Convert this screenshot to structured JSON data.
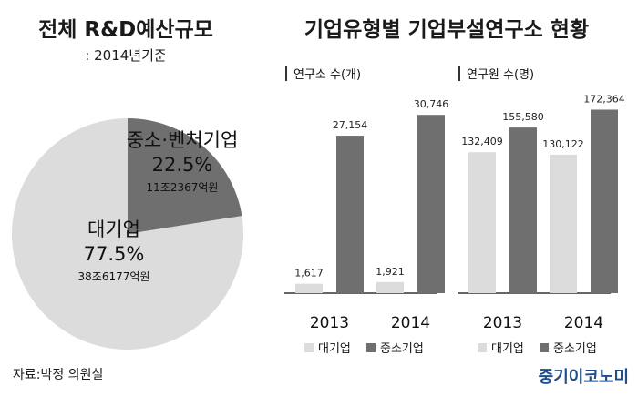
{
  "left_panel": {
    "title": "전체 R&D예산규모",
    "subtitle": ": 2014년기준"
  },
  "right_panel": {
    "title": "기업유형별 기업부설연구소 현황"
  },
  "source": "자료:박정 의원실",
  "brand": "중기이코노미",
  "colors": {
    "large_company": "#dcdcdc",
    "sme": "#6f6f6f",
    "brand": "#1f4e8c"
  },
  "chart_data": [
    {
      "type": "pie",
      "title": "전체 R&D예산규모",
      "subtitle": ": 2014년기준",
      "slices": [
        {
          "name": "중소·벤처기업",
          "percent": 22.5,
          "percent_label": "22.5%",
          "amount_label": "11조2367억원",
          "color": "#6f6f6f"
        },
        {
          "name": "대기업",
          "percent": 77.5,
          "percent_label": "77.5%",
          "amount_label": "38조6177억원",
          "color": "#dcdcdc"
        }
      ]
    },
    {
      "type": "bar",
      "title": "연구소 수(개)",
      "categories": [
        "2013",
        "2014"
      ],
      "series": [
        {
          "name": "대기업",
          "values": [
            1617,
            1921
          ],
          "labels": [
            "1,617",
            "1,921"
          ],
          "color": "#dcdcdc"
        },
        {
          "name": "중소기업",
          "values": [
            27154,
            30746
          ],
          "labels": [
            "27,154",
            "30,746"
          ],
          "color": "#6f6f6f"
        }
      ],
      "ylim": [
        0,
        38000
      ],
      "legend": "bottom"
    },
    {
      "type": "bar",
      "title": "연구원 수(명)",
      "categories": [
        "2013",
        "2014"
      ],
      "series": [
        {
          "name": "대기업",
          "values": [
            132409,
            130122
          ],
          "labels": [
            "132,409",
            "130,122"
          ],
          "color": "#dcdcdc"
        },
        {
          "name": "중소기업",
          "values": [
            155580,
            172364
          ],
          "labels": [
            "155,580",
            "172,364"
          ],
          "color": "#6f6f6f"
        }
      ],
      "ylim": [
        0,
        207000
      ],
      "legend": "bottom"
    }
  ]
}
